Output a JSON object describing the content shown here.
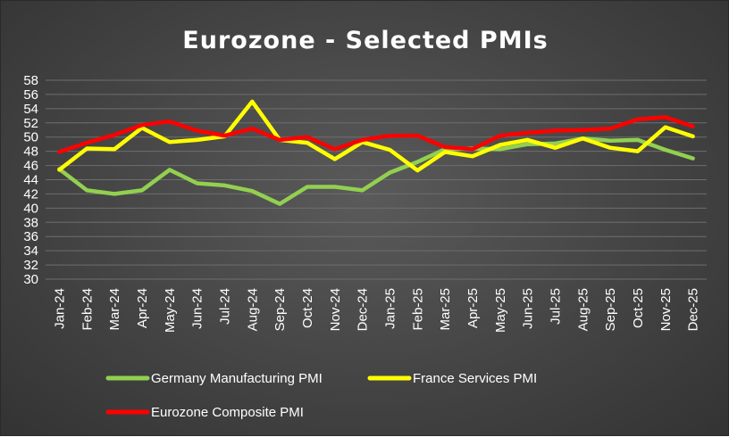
{
  "chart_data": {
    "type": "line",
    "title": "Eurozone - Selected PMIs",
    "xlabel": "",
    "ylabel": "",
    "ylim": [
      30,
      58
    ],
    "ytick_step": 2,
    "grid": true,
    "legend_placement": "bottom",
    "categories": [
      "Jan-24",
      "Feb-24",
      "Mar-24",
      "Apr-24",
      "May-24",
      "Jun-24",
      "Jul-24",
      "Aug-24",
      "Sep-24",
      "Oct-24",
      "Nov-24",
      "Dec-24",
      "Jan-25",
      "Feb-25",
      "Mar-25",
      "Apr-25",
      "May-25",
      "Jun-25",
      "Jul-25",
      "Aug-25",
      "Sep-25",
      "Oct-25",
      "Nov-25",
      "Dec-25"
    ],
    "series": [
      {
        "name": "Germany Manufacturing PMI",
        "color": "#92d050",
        "values": [
          45.5,
          42.5,
          42.0,
          42.5,
          45.4,
          43.5,
          43.2,
          42.4,
          40.6,
          43.0,
          43.0,
          42.5,
          45.0,
          46.5,
          48.3,
          48.4,
          48.3,
          49.0,
          49.1,
          49.8,
          49.5,
          49.6,
          48.2,
          47.0
        ]
      },
      {
        "name": "France Services PMI",
        "color": "#ffff00",
        "values": [
          45.4,
          48.4,
          48.3,
          51.3,
          49.3,
          49.6,
          50.1,
          55.0,
          49.6,
          49.2,
          46.9,
          49.3,
          48.2,
          45.3,
          47.9,
          47.3,
          48.9,
          49.6,
          48.5,
          49.8,
          48.5,
          48.0,
          51.4,
          50.1
        ]
      },
      {
        "name": "Eurozone Composite PMI",
        "color": "#ff0000",
        "values": [
          47.9,
          49.2,
          50.3,
          51.7,
          52.2,
          50.9,
          50.2,
          51.2,
          49.6,
          50.0,
          48.3,
          49.6,
          50.2,
          50.2,
          48.6,
          48.3,
          50.2,
          50.6,
          50.9,
          51.0,
          51.2,
          52.5,
          52.8,
          51.5
        ]
      }
    ]
  }
}
